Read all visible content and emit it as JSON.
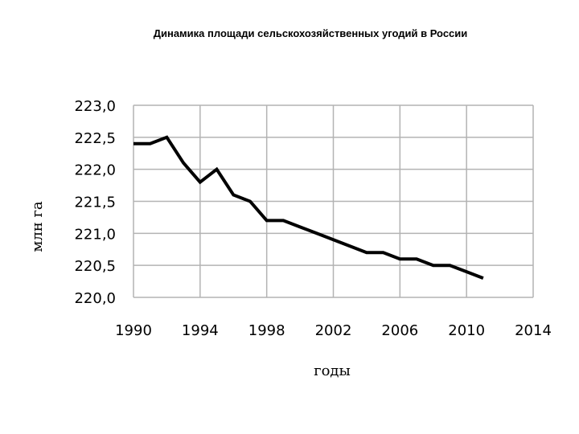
{
  "title": "Динамика площади сельскохозяйственных угодий  в России",
  "chart_data": {
    "type": "line",
    "title": "Динамика площади сельскохозяйственных угодий  в России",
    "xlabel": "годы",
    "ylabel": "млн га",
    "xlim": [
      1990,
      2014
    ],
    "ylim": [
      220.0,
      223.0
    ],
    "x_ticks": [
      "1990",
      "1994",
      "1998",
      "2002",
      "2006",
      "2010",
      "2014"
    ],
    "y_ticks": [
      "220,0",
      "220,5",
      "221,0",
      "221,5",
      "222,0",
      "222,5",
      "223,0"
    ],
    "grid": true,
    "legend": false,
    "series": [
      {
        "x": [
          1990,
          1991,
          1992,
          1993,
          1994,
          1995,
          1996,
          1997,
          1998,
          1999,
          2000,
          2001,
          2002,
          2003,
          2004,
          2005,
          2006,
          2007,
          2008,
          2009,
          2010,
          2011
        ],
        "values": [
          222.4,
          222.4,
          222.5,
          222.1,
          221.8,
          222.0,
          221.6,
          221.5,
          221.2,
          221.2,
          221.1,
          221.0,
          220.9,
          220.8,
          220.7,
          220.7,
          220.6,
          220.6,
          220.5,
          220.5,
          220.4,
          220.3
        ]
      }
    ],
    "line_color": "#000000",
    "grid_color": "#b3b3b3"
  }
}
